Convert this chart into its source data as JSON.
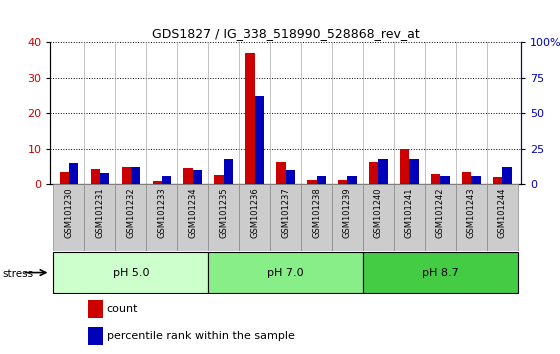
{
  "title": "GDS1827 / IG_338_518990_528868_rev_at",
  "samples": [
    "GSM101230",
    "GSM101231",
    "GSM101232",
    "GSM101233",
    "GSM101234",
    "GSM101235",
    "GSM101236",
    "GSM101237",
    "GSM101238",
    "GSM101239",
    "GSM101240",
    "GSM101241",
    "GSM101242",
    "GSM101243",
    "GSM101244"
  ],
  "count_values": [
    3.5,
    4.2,
    4.8,
    1.0,
    4.5,
    2.5,
    37.0,
    6.2,
    1.2,
    1.2,
    6.2,
    10.0,
    2.8,
    3.5,
    2.0
  ],
  "percentile_values": [
    15,
    8,
    12,
    6,
    10,
    18,
    62,
    10,
    6,
    6,
    18,
    18,
    6,
    6,
    12
  ],
  "groups": [
    {
      "label": "pH 5.0",
      "color": "#ccffcc",
      "start": 0,
      "end": 5
    },
    {
      "label": "pH 7.0",
      "color": "#88ee88",
      "start": 5,
      "end": 10
    },
    {
      "label": "pH 8.7",
      "color": "#44cc44",
      "start": 10,
      "end": 15
    }
  ],
  "stress_label": "stress",
  "ylim_left": [
    0,
    40
  ],
  "ylim_right": [
    0,
    100
  ],
  "yticks_left": [
    0,
    10,
    20,
    30,
    40
  ],
  "yticks_right": [
    0,
    25,
    50,
    75,
    100
  ],
  "ytick_labels_right": [
    "0",
    "25",
    "50",
    "75",
    "100%"
  ],
  "count_color": "#cc0000",
  "percentile_color": "#0000bb",
  "bar_width": 0.3,
  "tick_label_color_left": "#cc0000",
  "tick_label_color_right": "#0000bb",
  "xtick_bg_color": "#cccccc",
  "legend_items": [
    "count",
    "percentile rank within the sample"
  ],
  "legend_colors": [
    "#cc0000",
    "#0000bb"
  ]
}
